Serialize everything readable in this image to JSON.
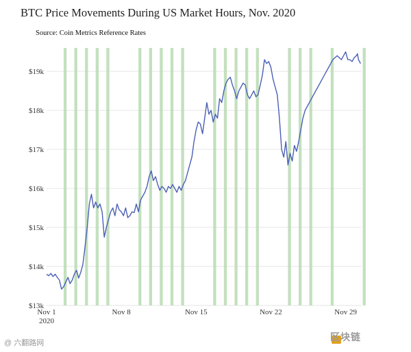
{
  "chart_data": {
    "type": "line",
    "title": "BTC Price Movements During US Market Hours, Nov. 2020",
    "subtitle": "Source: Coin Metrics Reference Rates",
    "xlabel": "",
    "ylabel": "",
    "xlim": [
      1,
      30.5
    ],
    "ylim": [
      13000,
      19600
    ],
    "x_ticks": [
      {
        "x": 1,
        "label": "Nov 1",
        "sublabel": "2020"
      },
      {
        "x": 8,
        "label": "Nov 8"
      },
      {
        "x": 15,
        "label": "Nov 15"
      },
      {
        "x": 22,
        "label": "Nov 22"
      },
      {
        "x": 29,
        "label": "Nov 29"
      }
    ],
    "y_ticks": [
      {
        "y": 13000,
        "label": "$13k"
      },
      {
        "y": 14000,
        "label": "$14k"
      },
      {
        "y": 15000,
        "label": "$15k"
      },
      {
        "y": 16000,
        "label": "$16k"
      },
      {
        "y": 17000,
        "label": "$17k"
      },
      {
        "y": 18000,
        "label": "$18k"
      },
      {
        "y": 19000,
        "label": "$19k"
      }
    ],
    "market_hours_days": [
      2,
      3,
      4,
      5,
      6,
      9,
      10,
      11,
      12,
      13,
      16,
      17,
      18,
      19,
      20,
      23,
      24,
      25,
      27,
      30
    ],
    "market_open_offset": 0.6,
    "market_close_offset": 0.875,
    "series": [
      {
        "color": "#4a5fb5",
        "x": [
          1.0,
          1.2,
          1.4,
          1.6,
          1.8,
          2.0,
          2.2,
          2.4,
          2.6,
          2.8,
          3.0,
          3.2,
          3.4,
          3.6,
          3.8,
          4.0,
          4.2,
          4.4,
          4.6,
          4.8,
          5.0,
          5.2,
          5.4,
          5.6,
          5.8,
          6.0,
          6.2,
          6.4,
          6.6,
          6.8,
          7.0,
          7.2,
          7.4,
          7.6,
          7.8,
          8.0,
          8.2,
          8.4,
          8.6,
          8.8,
          9.0,
          9.2,
          9.4,
          9.6,
          9.8,
          10.0,
          10.2,
          10.4,
          10.6,
          10.8,
          11.0,
          11.2,
          11.4,
          11.6,
          11.8,
          12.0,
          12.2,
          12.4,
          12.6,
          12.8,
          13.0,
          13.2,
          13.4,
          13.6,
          13.8,
          14.0,
          14.2,
          14.4,
          14.6,
          14.8,
          15.0,
          15.2,
          15.4,
          15.6,
          15.8,
          16.0,
          16.2,
          16.4,
          16.6,
          16.8,
          17.0,
          17.2,
          17.4,
          17.6,
          17.8,
          18.0,
          18.2,
          18.4,
          18.6,
          18.8,
          19.0,
          19.2,
          19.4,
          19.6,
          19.8,
          20.0,
          20.2,
          20.4,
          20.6,
          20.8,
          21.0,
          21.2,
          21.4,
          21.6,
          21.8,
          22.0,
          22.2,
          22.4,
          22.6,
          22.8,
          23.0,
          23.2,
          23.4,
          23.6,
          23.8,
          24.0,
          24.2,
          24.4,
          24.6,
          24.8,
          25.0,
          25.2,
          25.4,
          25.6,
          25.8,
          26.0,
          26.2,
          26.4,
          26.6,
          26.8,
          27.0,
          27.2,
          27.4,
          27.6,
          27.8,
          28.0,
          28.2,
          28.4,
          28.6,
          28.8,
          29.0,
          29.2,
          29.4,
          29.6,
          29.8,
          30.0,
          30.1,
          30.2,
          30.3,
          30.4
        ],
        "y": [
          13800,
          13760,
          13820,
          13740,
          13800,
          13720,
          13650,
          13420,
          13480,
          13600,
          13720,
          13560,
          13650,
          13800,
          13900,
          13700,
          13850,
          14050,
          14500,
          15000,
          15600,
          15850,
          15500,
          15650,
          15500,
          15600,
          15400,
          14750,
          15000,
          15200,
          15400,
          15500,
          15300,
          15600,
          15450,
          15400,
          15300,
          15500,
          15250,
          15300,
          15400,
          15380,
          15600,
          15400,
          15700,
          15800,
          15900,
          16050,
          16300,
          16450,
          16200,
          16300,
          16100,
          15950,
          16050,
          16000,
          15900,
          16050,
          16000,
          16100,
          16000,
          15900,
          16050,
          15950,
          16100,
          16200,
          16400,
          16600,
          16800,
          17200,
          17500,
          17700,
          17650,
          17400,
          17800,
          18200,
          17900,
          18000,
          17700,
          17900,
          17800,
          18300,
          18200,
          18500,
          18700,
          18800,
          18850,
          18650,
          18500,
          18300,
          18500,
          18600,
          18700,
          18650,
          18400,
          18300,
          18400,
          18500,
          18350,
          18400,
          18650,
          18900,
          19300,
          19200,
          19250,
          19100,
          18800,
          18600,
          18400,
          17800,
          17000,
          16800,
          17200,
          16600,
          16900,
          16700,
          17100,
          16950,
          17200,
          17500,
          17800,
          18000,
          18100,
          18200,
          18300,
          18400,
          18500,
          18600,
          18700,
          18800,
          18900,
          19000,
          19100,
          19200,
          19300,
          19350,
          19400,
          19350,
          19300,
          19400,
          19500,
          19300,
          19300,
          19250,
          19350,
          19400,
          19450,
          19300,
          19250,
          19200
        ],
        "note_fill": false
      }
    ]
  },
  "watermark_left": "@ 六翻路网",
  "watermark_right": "区块链"
}
